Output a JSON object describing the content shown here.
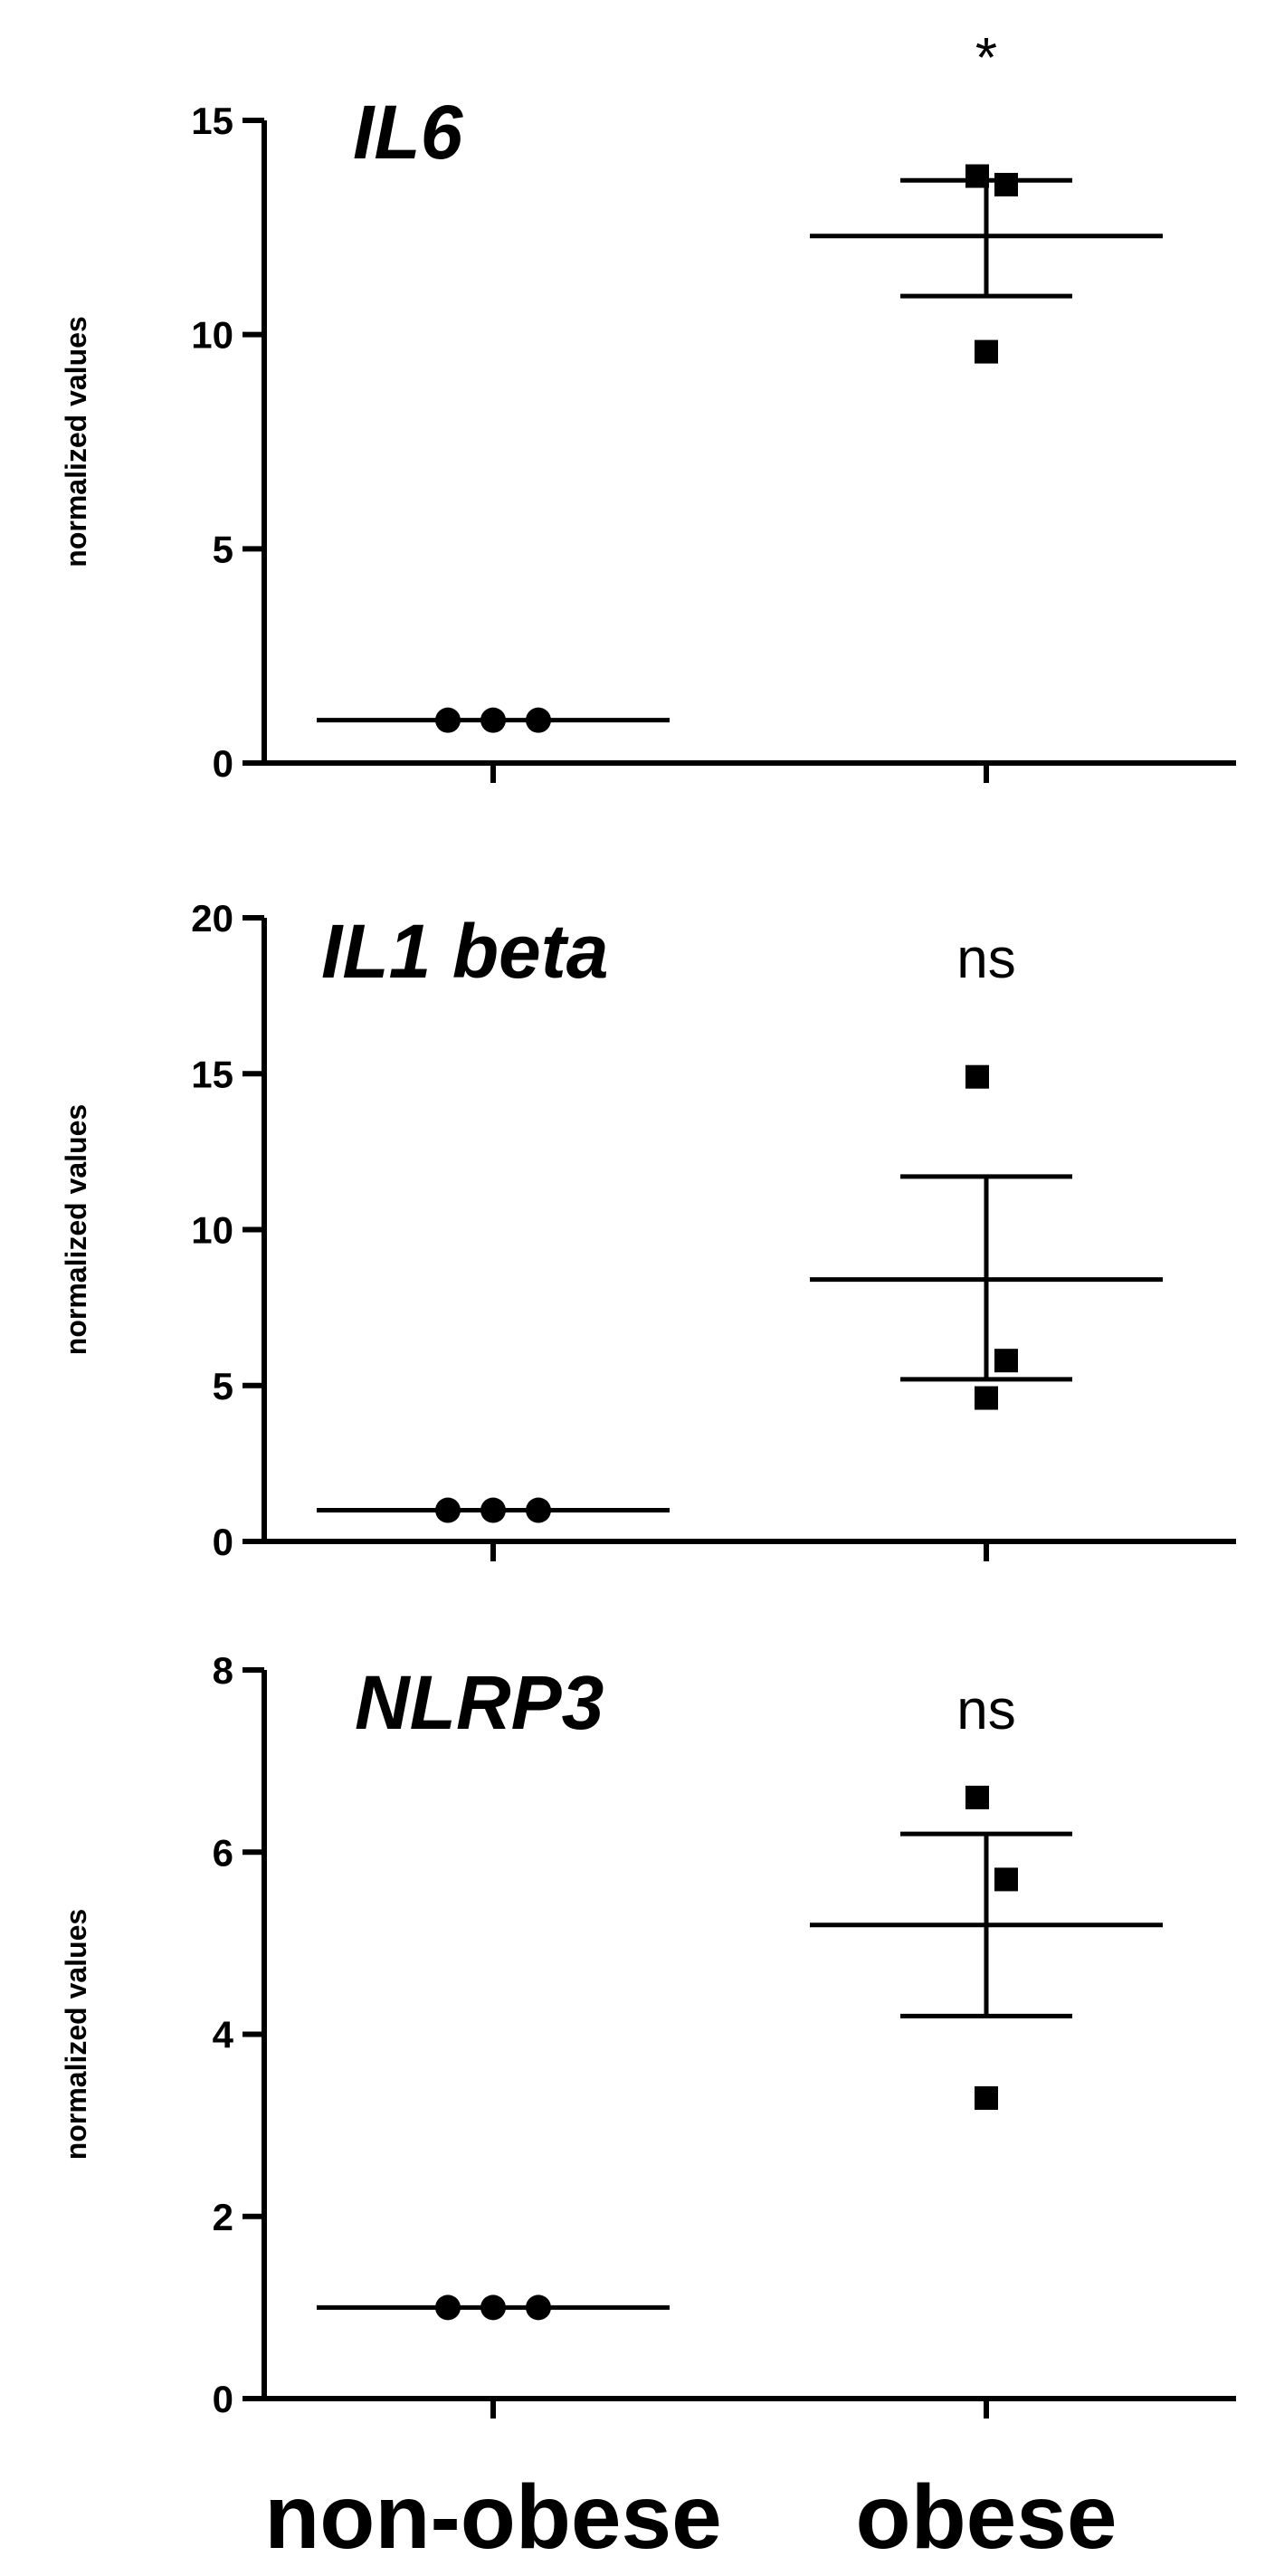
{
  "chart_data": [
    {
      "type": "scatter",
      "title": "IL6",
      "ylabel": "normalized values",
      "ylim": [
        0,
        15
      ],
      "yticks": [
        "0",
        "5",
        "10",
        "15"
      ],
      "annotation": "*",
      "categories": [
        "non-obese",
        "obese"
      ],
      "groups": [
        {
          "category": "non-obese",
          "marker": "circle",
          "points": [
            1,
            1,
            1
          ],
          "mean": 1,
          "sem_low": 1,
          "sem_high": 1
        },
        {
          "category": "obese",
          "marker": "square",
          "points": [
            13.7,
            13.5,
            9.6
          ],
          "mean": 12.3,
          "sem_low": 10.9,
          "sem_high": 13.6
        }
      ]
    },
    {
      "type": "scatter",
      "title": "IL1 beta",
      "ylabel": "normalized values",
      "ylim": [
        0,
        20
      ],
      "yticks": [
        "0",
        "5",
        "10",
        "15",
        "20"
      ],
      "annotation": "ns",
      "categories": [
        "non-obese",
        "obese"
      ],
      "groups": [
        {
          "category": "non-obese",
          "marker": "circle",
          "points": [
            1,
            1,
            1
          ],
          "mean": 1,
          "sem_low": 1,
          "sem_high": 1
        },
        {
          "category": "obese",
          "marker": "square",
          "points": [
            14.9,
            5.8,
            4.6
          ],
          "mean": 8.4,
          "sem_low": 5.2,
          "sem_high": 11.7
        }
      ]
    },
    {
      "type": "scatter",
      "title": "NLRP3",
      "ylabel": "normalized values",
      "ylim": [
        0,
        8
      ],
      "yticks": [
        "0",
        "2",
        "4",
        "6",
        "8"
      ],
      "annotation": "ns",
      "categories": [
        "non-obese",
        "obese"
      ],
      "groups": [
        {
          "category": "non-obese",
          "marker": "circle",
          "points": [
            1,
            1,
            1
          ],
          "mean": 1,
          "sem_low": 1,
          "sem_high": 1
        },
        {
          "category": "obese",
          "marker": "square",
          "points": [
            6.6,
            5.7,
            3.3
          ],
          "mean": 5.2,
          "sem_low": 4.2,
          "sem_high": 6.2
        }
      ]
    }
  ],
  "x_labels": [
    "non-obese",
    "obese"
  ]
}
